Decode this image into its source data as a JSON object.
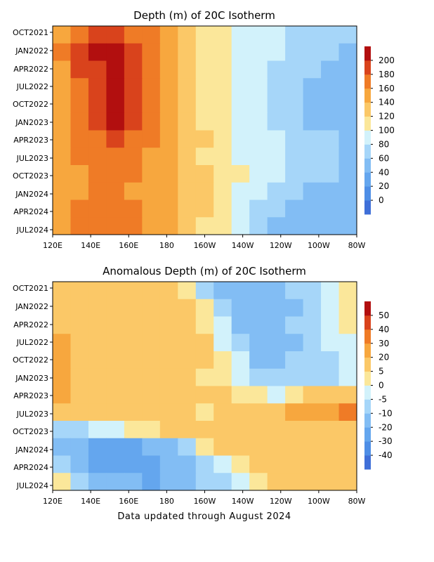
{
  "chart_data": [
    {
      "type": "heatmap",
      "title": "Depth (m) of 20C Isotherm",
      "xlabel": "",
      "ylabel": "",
      "x_ticks": [
        "120E",
        "140E",
        "160E",
        "180",
        "160W",
        "140W",
        "120W",
        "100W",
        "80W"
      ],
      "x_range": [
        "120E",
        "80W"
      ],
      "y_ticks": [
        "OCT2021",
        "JAN2022",
        "APR2022",
        "JUL2022",
        "OCT2022",
        "JAN2023",
        "APR2023",
        "JUL2023",
        "OCT2023",
        "JAN2024",
        "APR2024",
        "JUL2024"
      ],
      "y_range": [
        "OCT2021",
        "AUG2024"
      ],
      "colorbar": {
        "levels": [
          0,
          20,
          40,
          60,
          80,
          100,
          120,
          140,
          160,
          180,
          200
        ],
        "colors": [
          "#3f6fd8",
          "#4e8ee6",
          "#64a6ee",
          "#82bdf4",
          "#a6d6f9",
          "#d2f2fb",
          "#fbe79a",
          "#fbc867",
          "#f7a73e",
          "#ef7b26",
          "#d9431c",
          "#b20f0f"
        ]
      },
      "lon_ticks_deg": [
        120,
        140,
        160,
        180,
        200,
        220,
        240,
        260,
        280
      ],
      "values_by_lon": [
        [
          150,
          170,
          185,
          188,
          178,
          160,
          140,
          125,
          115,
          105,
          95,
          90,
          85,
          78,
          70,
          65,
          60
        ],
        [
          160,
          185,
          200,
          200,
          190,
          165,
          145,
          130,
          118,
          105,
          95,
          88,
          80,
          72,
          66,
          60,
          55
        ],
        [
          155,
          180,
          198,
          205,
          195,
          170,
          148,
          130,
          115,
          102,
          92,
          82,
          74,
          66,
          60,
          55,
          50
        ],
        [
          150,
          170,
          190,
          200,
          188,
          168,
          148,
          128,
          113,
          100,
          90,
          80,
          72,
          64,
          58,
          52,
          48
        ],
        [
          148,
          168,
          185,
          205,
          190,
          170,
          150,
          130,
          115,
          102,
          92,
          82,
          72,
          64,
          58,
          52,
          45
        ],
        [
          150,
          170,
          195,
          210,
          195,
          172,
          152,
          132,
          118,
          103,
          92,
          82,
          72,
          64,
          56,
          50,
          45
        ],
        [
          150,
          165,
          178,
          185,
          175,
          160,
          145,
          130,
          120,
          108,
          98,
          88,
          80,
          72,
          66,
          60,
          55
        ],
        [
          145,
          160,
          172,
          172,
          165,
          155,
          140,
          128,
          118,
          108,
          98,
          88,
          80,
          72,
          66,
          60,
          58
        ],
        [
          140,
          155,
          165,
          165,
          160,
          152,
          142,
          132,
          122,
          112,
          102,
          90,
          80,
          70,
          64,
          60,
          58
        ],
        [
          140,
          150,
          162,
          160,
          158,
          150,
          140,
          130,
          120,
          110,
          98,
          85,
          72,
          62,
          56,
          52,
          55
        ],
        [
          140,
          160,
          168,
          165,
          160,
          152,
          145,
          132,
          120,
          105,
          88,
          75,
          62,
          55,
          50,
          48,
          55
        ],
        [
          150,
          165,
          170,
          168,
          162,
          155,
          145,
          132,
          118,
          100,
          85,
          70,
          58,
          50,
          46,
          45,
          52
        ]
      ]
    },
    {
      "type": "heatmap",
      "title": "Anomalous Depth (m) of 20C Isotherm",
      "xlabel": "",
      "ylabel": "",
      "x_ticks": [
        "120E",
        "140E",
        "160E",
        "180",
        "160W",
        "140W",
        "120W",
        "100W",
        "80W"
      ],
      "x_range": [
        "120E",
        "80W"
      ],
      "y_ticks": [
        "OCT2021",
        "JAN2022",
        "APR2022",
        "JUL2022",
        "OCT2022",
        "JAN2023",
        "APR2023",
        "JUL2023",
        "OCT2023",
        "JAN2024",
        "APR2024",
        "JUL2024"
      ],
      "y_range": [
        "OCT2021",
        "AUG2024"
      ],
      "colorbar": {
        "levels": [
          -40,
          -30,
          -20,
          -10,
          -5,
          0,
          5,
          20,
          30,
          40,
          50
        ],
        "colors": [
          "#3f6fd8",
          "#4e8ee6",
          "#64a6ee",
          "#82bdf4",
          "#a6d6f9",
          "#d2f2fb",
          "#fbe79a",
          "#fbc867",
          "#f7a73e",
          "#ef7b26",
          "#d9431c",
          "#b20f0f"
        ]
      },
      "lon_ticks_deg": [
        120,
        140,
        160,
        180,
        200,
        220,
        240,
        260,
        280
      ],
      "values_by_lon": [
        [
          15,
          10,
          10,
          10,
          10,
          8,
          5,
          0,
          -10,
          -15,
          -20,
          -15,
          -12,
          -10,
          -8,
          -5,
          0
        ],
        [
          15,
          12,
          10,
          10,
          10,
          10,
          8,
          5,
          0,
          -10,
          -15,
          -20,
          -20,
          -18,
          -10,
          -5,
          0
        ],
        [
          18,
          12,
          10,
          10,
          10,
          10,
          8,
          6,
          2,
          -5,
          -12,
          -15,
          -15,
          -10,
          -8,
          -5,
          0
        ],
        [
          20,
          15,
          12,
          10,
          10,
          10,
          10,
          8,
          5,
          -2,
          -10,
          -15,
          -15,
          -12,
          -8,
          -5,
          -2
        ],
        [
          25,
          15,
          12,
          14,
          12,
          10,
          10,
          8,
          6,
          2,
          -5,
          -12,
          -12,
          -10,
          -8,
          -6,
          -5
        ],
        [
          25,
          15,
          12,
          15,
          12,
          10,
          10,
          8,
          4,
          0,
          -5,
          -10,
          -10,
          -8,
          -8,
          -8,
          -5
        ],
        [
          20,
          15,
          12,
          10,
          10,
          10,
          10,
          8,
          6,
          5,
          2,
          0,
          -2,
          0,
          5,
          5,
          10
        ],
        [
          8,
          5,
          5,
          5,
          5,
          5,
          5,
          5,
          4,
          8,
          12,
          15,
          18,
          22,
          25,
          25,
          30
        ],
        [
          -10,
          -8,
          -5,
          -5,
          0,
          2,
          5,
          5,
          5,
          8,
          10,
          12,
          14,
          15,
          18,
          18,
          15
        ],
        [
          -15,
          -20,
          -25,
          -25,
          -22,
          -20,
          -15,
          -10,
          0,
          5,
          10,
          12,
          14,
          15,
          15,
          14,
          12
        ],
        [
          -10,
          -20,
          -25,
          -25,
          -25,
          -25,
          -20,
          -15,
          -10,
          -5,
          0,
          5,
          8,
          10,
          10,
          12,
          10
        ],
        [
          0,
          -10,
          -15,
          -15,
          -20,
          -22,
          -20,
          -15,
          -10,
          -8,
          -5,
          0,
          5,
          5,
          8,
          5,
          5
        ]
      ]
    }
  ],
  "footer": "Data updated through August 2024"
}
